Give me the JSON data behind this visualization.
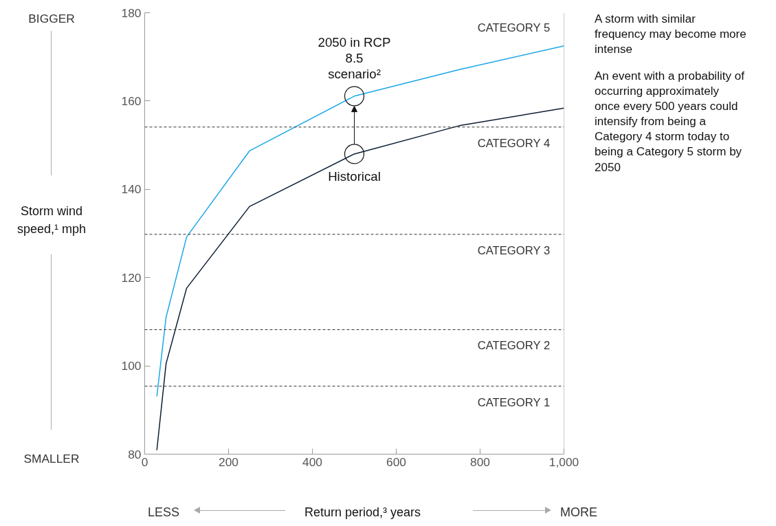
{
  "chart_data": {
    "type": "line",
    "title": "A storm with similar frequency may become more intense",
    "ylabel": "Storm wind speed,¹ mph",
    "xlabel": "Return period,³ years",
    "xlim": [
      0,
      1000
    ],
    "xticks": [
      0,
      200,
      400,
      600,
      800,
      {
        "value": 1000,
        "label": "1,000"
      }
    ],
    "ylim": [
      80,
      180
    ],
    "yticks": [
      80,
      100,
      120,
      140,
      160,
      180
    ],
    "grid": false,
    "marker": "none",
    "line_style": "solid",
    "x": [
      29,
      51,
      100,
      250,
      500,
      750,
      1000
    ],
    "series": [
      {
        "name": "2050 in RCP 8.5 scenario²",
        "color": "#1aa7e8",
        "values": [
          93.1,
          111,
          129.2,
          148.7,
          161.1,
          167.1,
          172.5
        ]
      },
      {
        "name": "Historical",
        "color": "#0b1d33",
        "values": [
          80.9,
          100.5,
          117.6,
          136.1,
          148,
          154.4,
          158.4
        ]
      }
    ],
    "ref_lines": [
      {
        "axis": "y",
        "value": 95.4,
        "line_style": "dashed",
        "label": "CATEGORY 1"
      },
      {
        "axis": "y",
        "value": 108.2,
        "line_style": "dashed",
        "label": "CATEGORY 2"
      },
      {
        "axis": "y",
        "value": 129.8,
        "line_style": "dashed",
        "label": "CATEGORY 3"
      },
      {
        "axis": "y",
        "value": 154.1,
        "line_style": "dashed",
        "label": "CATEGORY 4"
      }
    ],
    "annotations": [
      "An event with a probability of occurring approximately once every 500 years could intensify from being a Category 4 storm today to being a Category 5 storm by 2050",
      "BIGGER",
      "SMALLER",
      "LESS",
      "MORE",
      "CATEGORY 5"
    ]
  }
}
